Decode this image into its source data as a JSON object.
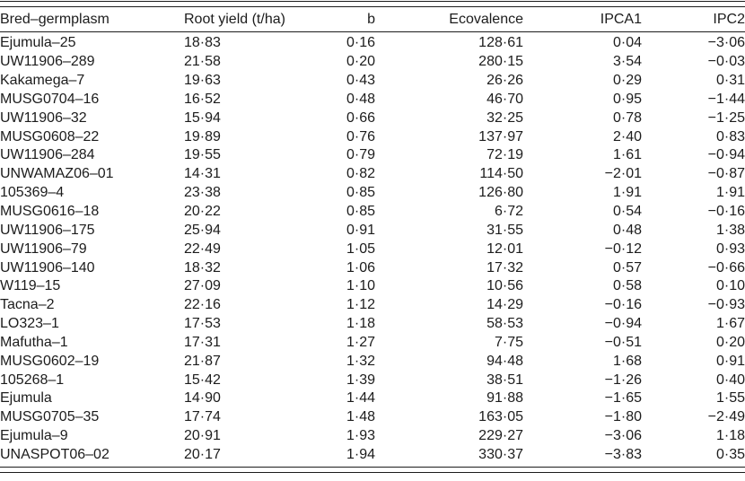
{
  "table": {
    "columns": [
      {
        "key": "bred_germplasm",
        "label": "Bred–germplasm"
      },
      {
        "key": "root_yield",
        "label": "Root yield (t/ha)"
      },
      {
        "key": "b",
        "label": "b"
      },
      {
        "key": "ecovalence",
        "label": "Ecovalence"
      },
      {
        "key": "ipca1",
        "label": "IPCA1"
      },
      {
        "key": "ipc2",
        "label": "IPC2"
      }
    ],
    "rows": [
      [
        "Ejumula–25",
        "18·83",
        "0·16",
        "128·61",
        "0·04",
        "−3·06"
      ],
      [
        "UW11906–289",
        "21·58",
        "0·20",
        "280·15",
        "3·54",
        "−0·03"
      ],
      [
        "Kakamega–7",
        "19·63",
        "0·43",
        "26·26",
        "0·29",
        "0·31"
      ],
      [
        "MUSG0704–16",
        "16·52",
        "0·48",
        "46·70",
        "0·95",
        "−1·44"
      ],
      [
        "UW11906–32",
        "15·94",
        "0·66",
        "32·25",
        "0·78",
        "−1·25"
      ],
      [
        "MUSG0608–22",
        "19·89",
        "0·76",
        "137·97",
        "2·40",
        "0·83"
      ],
      [
        "UW11906–284",
        "19·55",
        "0·79",
        "72·19",
        "1·61",
        "−0·94"
      ],
      [
        "UNWAMAZ06–01",
        "14·31",
        "0·82",
        "114·50",
        "−2·01",
        "−0·87"
      ],
      [
        "105369–4",
        "23·38",
        "0·85",
        "126·80",
        "1·91",
        "1·91"
      ],
      [
        "MUSG0616–18",
        "20·22",
        "0·85",
        "6·72",
        "0·54",
        "−0·16"
      ],
      [
        "UW11906–175",
        "25·94",
        "0·91",
        "31·55",
        "0·48",
        "1·38"
      ],
      [
        "UW11906–79",
        "22·49",
        "1·05",
        "12·01",
        "−0·12",
        "0·93"
      ],
      [
        "UW11906–140",
        "18·32",
        "1·06",
        "17·32",
        "0·57",
        "−0·66"
      ],
      [
        "W119–15",
        "27·09",
        "1·10",
        "10·56",
        "0·58",
        "0·10"
      ],
      [
        "Tacna–2",
        "22·16",
        "1·12",
        "14·29",
        "−0·16",
        "−0·93"
      ],
      [
        "LO323–1",
        "17·53",
        "1·18",
        "58·53",
        "−0·94",
        "1·67"
      ],
      [
        "Mafutha–1",
        "17·31",
        "1·27",
        "7·75",
        "−0·51",
        "0·20"
      ],
      [
        "MUSG0602–19",
        "21·87",
        "1·32",
        "94·48",
        "1·68",
        "0·91"
      ],
      [
        "105268–1",
        "15·42",
        "1·39",
        "38·51",
        "−1·26",
        "0·40"
      ],
      [
        "Ejumula",
        "14·90",
        "1·44",
        "91·88",
        "−1·65",
        "1·55"
      ],
      [
        "MUSG0705–35",
        "17·74",
        "1·48",
        "163·05",
        "−1·80",
        "−2·49"
      ],
      [
        "Ejumula–9",
        "20·91",
        "1·93",
        "229·27",
        "−3·06",
        "1·18"
      ],
      [
        "UNASPOT06–02",
        "20·17",
        "1·94",
        "330·37",
        "−3·83",
        "0·35"
      ]
    ]
  }
}
